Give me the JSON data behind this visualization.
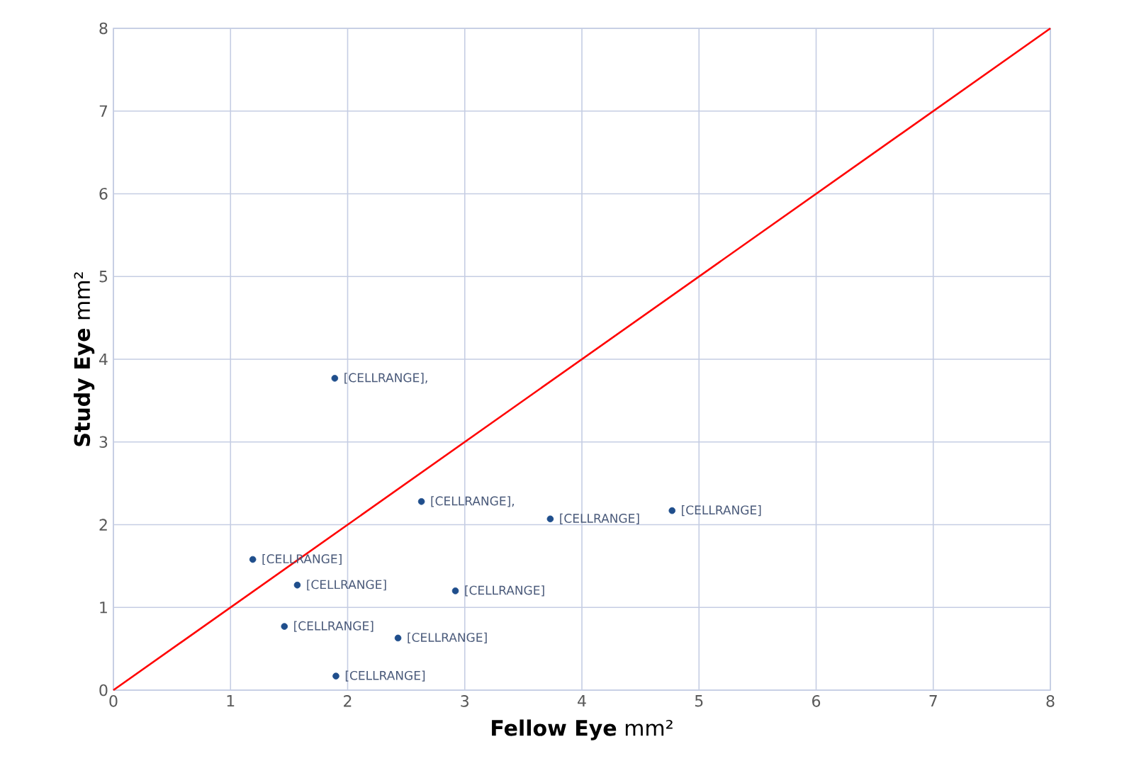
{
  "chart_data": {
    "type": "scatter",
    "xlabel": "**Fellow Eye** mm²",
    "ylabel": "**Study Eye**    mm²",
    "xlim": [
      0,
      8
    ],
    "ylim": [
      0,
      8
    ],
    "xticks": [
      0,
      1,
      2,
      3,
      4,
      5,
      6,
      7,
      8
    ],
    "yticks": [
      0,
      1,
      2,
      3,
      4,
      5,
      6,
      7,
      8
    ],
    "grid": true,
    "series": [
      {
        "color": "#1f4e8c",
        "marker": "circle",
        "x": [
          1.89,
          2.63,
          3.73,
          4.77,
          1.19,
          1.57,
          2.92,
          1.46,
          2.43,
          1.9
        ],
        "values": [
          3.77,
          2.28,
          2.07,
          2.17,
          1.58,
          1.27,
          1.2,
          0.77,
          0.63,
          0.17
        ]
      },
      {
        "type": "line",
        "color": "#ff0000",
        "x": [
          0,
          8
        ],
        "values": [
          0,
          8
        ],
        "marker": "none",
        "line_style": "solid"
      }
    ],
    "annotations": [
      {
        "text": "[CELLRANGE],",
        "x": 1.89,
        "y": 3.77
      },
      {
        "text": "[CELLRANGE],",
        "x": 2.63,
        "y": 2.28
      },
      {
        "text": "[CELLRANGE]",
        "x": 3.73,
        "y": 2.07
      },
      {
        "text": "[CELLRANGE]",
        "x": 4.77,
        "y": 2.17
      },
      {
        "text": "[CELLRANGE]",
        "x": 1.19,
        "y": 1.58
      },
      {
        "text": "[CELLRANGE]",
        "x": 1.57,
        "y": 1.27
      },
      {
        "text": "[CELLRANGE]",
        "x": 2.92,
        "y": 1.2
      },
      {
        "text": "[CELLRANGE]",
        "x": 1.46,
        "y": 0.77
      },
      {
        "text": "[CELLRANGE]",
        "x": 2.43,
        "y": 0.63
      },
      {
        "text": "[CELLRANGE]",
        "x": 1.9,
        "y": 0.17
      }
    ]
  }
}
